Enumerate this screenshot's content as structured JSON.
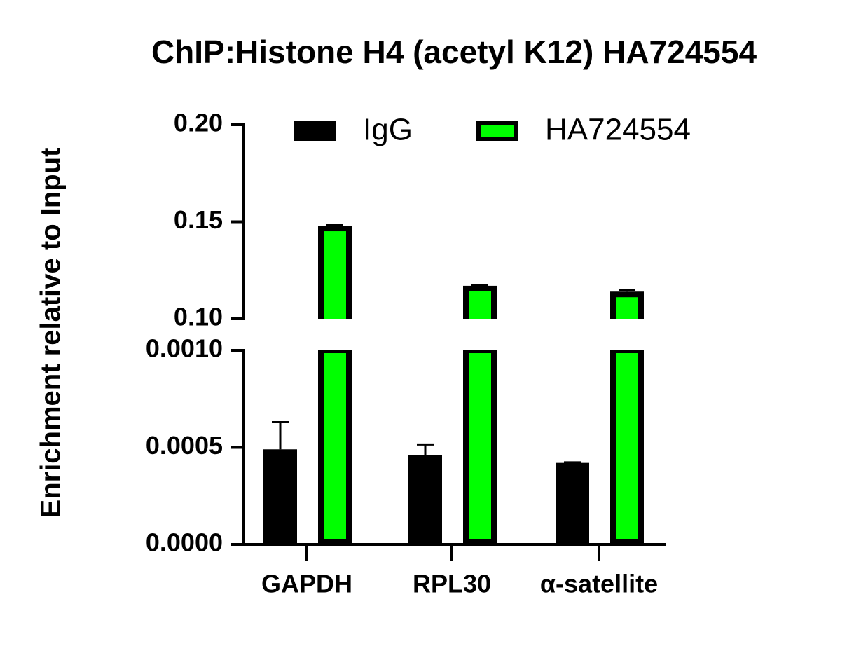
{
  "chart_data": {
    "type": "bar",
    "title": "ChIP:Histone H4 (acetyl K12) HA724554",
    "ylabel": "Enrichment relative to Input",
    "categories": [
      "GAPDH",
      "RPL30",
      "α-satellite"
    ],
    "series": [
      {
        "name": "IgG",
        "color": "#000000",
        "values": [
          0.00049,
          0.00046,
          0.00042
        ],
        "errors": [
          0.00014,
          5.5e-05,
          3e-06
        ]
      },
      {
        "name": "HA724554",
        "color": "#00ff00",
        "values": [
          0.148,
          0.117,
          0.114
        ],
        "errors": [
          0.0003,
          0.0003,
          0.001
        ]
      }
    ],
    "ylim": [
      0,
      0.001
    ],
    "yticks": [
      {
        "value": 0,
        "label": "0.0000"
      },
      {
        "value": 0.0005,
        "label": "0.0005"
      },
      {
        "value": 0.001,
        "label": "0.0010"
      }
    ],
    "ylim_upper": [
      0.1,
      0.2
    ],
    "yticks_upper": [
      {
        "value": 0.1,
        "label": "0.10"
      },
      0.15,
      {
        "value": 0.2,
        "label": "0.20"
      }
    ],
    "legend": "top"
  }
}
